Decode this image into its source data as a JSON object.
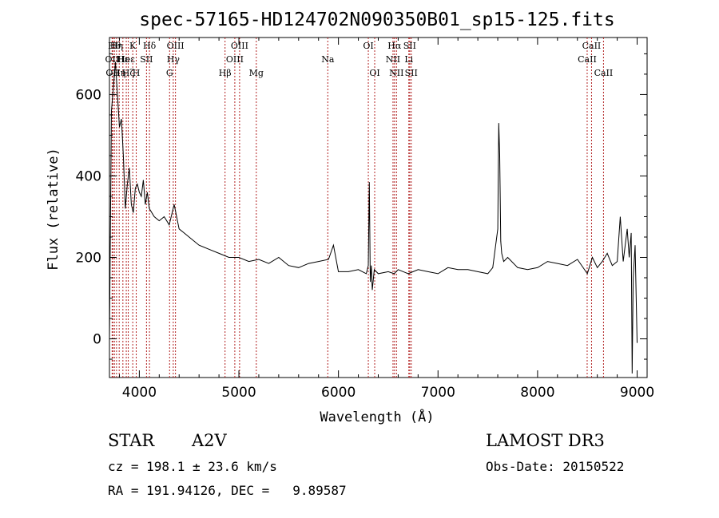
{
  "chart_data": {
    "type": "line",
    "title": "spec-57165-HD124702N090350B01_sp15-125.fits",
    "xlabel": "Wavelength (Å)",
    "ylabel": "Flux (relative)",
    "xlim": [
      3700,
      9100
    ],
    "ylim": [
      -95,
      740
    ],
    "xticks": [
      4000,
      5000,
      6000,
      7000,
      8000,
      9000
    ],
    "yticks": [
      0,
      200,
      400,
      600
    ],
    "series": [
      {
        "name": "spectrum",
        "x": [
          3700,
          3720,
          3740,
          3760,
          3780,
          3800,
          3820,
          3840,
          3860,
          3880,
          3900,
          3920,
          3940,
          3960,
          3980,
          4000,
          4020,
          4040,
          4060,
          4080,
          4100,
          4150,
          4200,
          4250,
          4300,
          4350,
          4400,
          4450,
          4500,
          4600,
          4700,
          4800,
          4900,
          5000,
          5100,
          5200,
          5300,
          5400,
          5500,
          5600,
          5700,
          5800,
          5900,
          5950,
          6000,
          6100,
          6200,
          6280,
          6300,
          6310,
          6320,
          6330,
          6340,
          6360,
          6400,
          6500,
          6560,
          6600,
          6700,
          6800,
          6900,
          7000,
          7100,
          7200,
          7300,
          7400,
          7500,
          7550,
          7600,
          7610,
          7620,
          7630,
          7640,
          7660,
          7700,
          7800,
          7900,
          8000,
          8100,
          8200,
          8300,
          8400,
          8500,
          8550,
          8600,
          8650,
          8700,
          8750,
          8800,
          8830,
          8860,
          8900,
          8920,
          8940,
          8950,
          8960,
          8980,
          9000
        ],
        "y": [
          0,
          560,
          620,
          680,
          600,
          520,
          540,
          450,
          320,
          380,
          420,
          330,
          310,
          370,
          380,
          360,
          350,
          390,
          330,
          360,
          320,
          300,
          290,
          300,
          280,
          330,
          270,
          260,
          250,
          230,
          220,
          210,
          200,
          200,
          190,
          195,
          185,
          200,
          180,
          175,
          185,
          190,
          195,
          230,
          165,
          165,
          170,
          160,
          180,
          385,
          140,
          180,
          120,
          170,
          160,
          165,
          160,
          170,
          160,
          170,
          165,
          160,
          175,
          170,
          170,
          165,
          160,
          175,
          270,
          530,
          450,
          240,
          210,
          190,
          200,
          175,
          170,
          175,
          190,
          185,
          180,
          195,
          160,
          200,
          175,
          190,
          210,
          180,
          190,
          300,
          190,
          270,
          200,
          260,
          -85,
          150,
          230,
          -10
        ]
      }
    ],
    "lines": [
      {
        "wl": 3727,
        "label": "OII",
        "row": 2
      },
      {
        "wl": 3734,
        "label": "OII",
        "row": 3
      },
      {
        "wl": 3750,
        "label": "Hθ",
        "row": 1
      },
      {
        "wl": 3771,
        "label": "Hη",
        "row": 1
      },
      {
        "wl": 3798,
        "label": "Hη",
        "row": 3
      },
      {
        "wl": 3835,
        "label": "Hε",
        "row": 2
      },
      {
        "wl": 3869,
        "label": "Heε",
        "row": 2
      },
      {
        "wl": 3889,
        "label": "Hζ",
        "row": 3
      },
      {
        "wl": 3934,
        "label": "K",
        "row": 1
      },
      {
        "wl": 3969,
        "label": "H",
        "row": 3
      },
      {
        "wl": 4072,
        "label": "SII",
        "row": 2
      },
      {
        "wl": 4102,
        "label": "Hδ",
        "row": 1
      },
      {
        "wl": 4304,
        "label": "G",
        "row": 3
      },
      {
        "wl": 4341,
        "label": "Hγ",
        "row": 2
      },
      {
        "wl": 4363,
        "label": "OIII",
        "row": 1
      },
      {
        "wl": 4861,
        "label": "Hβ",
        "row": 3
      },
      {
        "wl": 4959,
        "label": "OIII",
        "row": 2
      },
      {
        "wl": 5007,
        "label": "OIII",
        "row": 1
      },
      {
        "wl": 5175,
        "label": "Mg",
        "row": 3
      },
      {
        "wl": 5893,
        "label": "Na",
        "row": 2
      },
      {
        "wl": 6300,
        "label": "OI",
        "row": 1
      },
      {
        "wl": 6364,
        "label": "OI",
        "row": 3
      },
      {
        "wl": 6548,
        "label": "NII",
        "row": 2
      },
      {
        "wl": 6563,
        "label": "Hα",
        "row": 1
      },
      {
        "wl": 6583,
        "label": "NII",
        "row": 3
      },
      {
        "wl": 6707,
        "label": "Li",
        "row": 2
      },
      {
        "wl": 6716,
        "label": "SII",
        "row": 1
      },
      {
        "wl": 6731,
        "label": "SII",
        "row": 3
      },
      {
        "wl": 8498,
        "label": "CaII",
        "row": 2
      },
      {
        "wl": 8542,
        "label": "CaII",
        "row": 1
      },
      {
        "wl": 8662,
        "label": "CaII",
        "row": 3
      }
    ]
  },
  "info": {
    "class_type": "STAR",
    "subclass": "A2V",
    "survey": "LAMOST DR3",
    "cz": "cz = 198.1 ± 23.6 km/s",
    "obs_date": "Obs-Date: 20150522",
    "coords": "RA = 191.94126, DEC =   9.89587"
  }
}
